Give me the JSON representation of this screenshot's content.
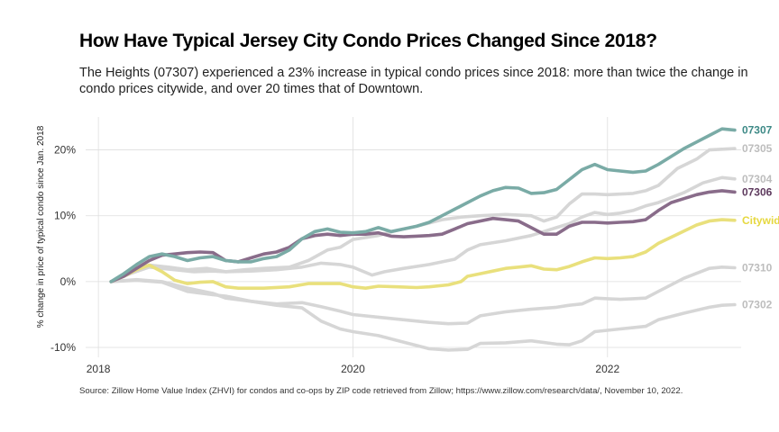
{
  "title": "How Have Typical Jersey City Condo Prices Changed Since 2018?",
  "subtitle": "The Heights (07307) experienced a 23% increase in typical condo prices since 2018: more than twice the change in condo prices citywide, and over 20 times that of Downtown.",
  "source": "Source: Zillow Home Value Index (ZHVI) for condos and co-ops by ZIP code retrieved from Zillow; https://www.zillow.com/research/data/, November 10, 2022.",
  "chart_data": {
    "type": "line",
    "title": "How Have Typical Jersey City Condo Prices Changed Since 2018?",
    "xlabel": "",
    "ylabel": "% change in price of typical condo since Jan. 2018",
    "xlim": [
      2017.9,
      2023.05
    ],
    "ylim": [
      -11.5,
      25
    ],
    "x_ticks": [
      2018,
      2020,
      2022
    ],
    "x_tick_labels": [
      "2018",
      "2020",
      "2022"
    ],
    "y_ticks": [
      -10,
      0,
      10,
      20
    ],
    "y_tick_labels": [
      "-10%",
      "0%",
      "10%",
      "20%"
    ],
    "grid": true,
    "legend": "direct labels at line ends",
    "series": [
      {
        "name": "07310",
        "color": "#d6d6d6",
        "label_color": "#bdbdbd",
        "points": [
          [
            2018.1,
            0
          ],
          [
            2018.3,
            0.3
          ],
          [
            2018.5,
            0
          ],
          [
            2018.7,
            -1.0
          ],
          [
            2018.9,
            -1.8
          ],
          [
            2019.0,
            -2.5
          ],
          [
            2019.2,
            -3.0
          ],
          [
            2019.4,
            -3.4
          ],
          [
            2019.6,
            -3.2
          ],
          [
            2019.75,
            -3.8
          ],
          [
            2019.9,
            -4.5
          ],
          [
            2020.0,
            -5.0
          ],
          [
            2020.2,
            -5.4
          ],
          [
            2020.4,
            -5.8
          ],
          [
            2020.6,
            -6.2
          ],
          [
            2020.75,
            -6.4
          ],
          [
            2020.9,
            -6.3
          ],
          [
            2021.0,
            -5.2
          ],
          [
            2021.2,
            -4.6
          ],
          [
            2021.4,
            -4.2
          ],
          [
            2021.6,
            -3.9
          ],
          [
            2021.7,
            -3.6
          ],
          [
            2021.8,
            -3.4
          ],
          [
            2021.9,
            -2.5
          ],
          [
            2022.0,
            -2.6
          ],
          [
            2022.1,
            -2.7
          ],
          [
            2022.2,
            -2.6
          ],
          [
            2022.3,
            -2.5
          ],
          [
            2022.4,
            -1.5
          ],
          [
            2022.6,
            0.5
          ],
          [
            2022.8,
            2.0
          ],
          [
            2022.9,
            2.2
          ],
          [
            2023.0,
            2.1
          ]
        ]
      },
      {
        "name": "07302",
        "color": "#d6d6d6",
        "label_color": "#bdbdbd",
        "points": [
          [
            2018.1,
            0
          ],
          [
            2018.3,
            0.2
          ],
          [
            2018.5,
            -0.1
          ],
          [
            2018.7,
            -1.5
          ],
          [
            2018.9,
            -2.0
          ],
          [
            2019.0,
            -2.2
          ],
          [
            2019.2,
            -3.0
          ],
          [
            2019.4,
            -3.6
          ],
          [
            2019.6,
            -4.0
          ],
          [
            2019.75,
            -6.0
          ],
          [
            2019.9,
            -7.2
          ],
          [
            2020.0,
            -7.6
          ],
          [
            2020.2,
            -8.2
          ],
          [
            2020.4,
            -9.2
          ],
          [
            2020.6,
            -10.2
          ],
          [
            2020.75,
            -10.4
          ],
          [
            2020.9,
            -10.3
          ],
          [
            2021.0,
            -9.4
          ],
          [
            2021.2,
            -9.3
          ],
          [
            2021.4,
            -9.0
          ],
          [
            2021.6,
            -9.5
          ],
          [
            2021.7,
            -9.6
          ],
          [
            2021.8,
            -9.0
          ],
          [
            2021.9,
            -7.6
          ],
          [
            2022.0,
            -7.4
          ],
          [
            2022.1,
            -7.2
          ],
          [
            2022.2,
            -7.0
          ],
          [
            2022.3,
            -6.8
          ],
          [
            2022.4,
            -5.8
          ],
          [
            2022.6,
            -4.8
          ],
          [
            2022.8,
            -3.9
          ],
          [
            2022.9,
            -3.6
          ],
          [
            2023.0,
            -3.5
          ]
        ]
      },
      {
        "name": "07304",
        "color": "#d6d6d6",
        "label_color": "#bdbdbd",
        "points": [
          [
            2018.1,
            0
          ],
          [
            2018.25,
            1.2
          ],
          [
            2018.4,
            2.2
          ],
          [
            2018.6,
            1.8
          ],
          [
            2018.75,
            1.5
          ],
          [
            2018.9,
            1.6
          ],
          [
            2019.0,
            1.5
          ],
          [
            2019.2,
            1.6
          ],
          [
            2019.4,
            1.8
          ],
          [
            2019.6,
            2.2
          ],
          [
            2019.75,
            2.8
          ],
          [
            2019.9,
            2.6
          ],
          [
            2020.0,
            2.2
          ],
          [
            2020.15,
            1.0
          ],
          [
            2020.25,
            1.5
          ],
          [
            2020.4,
            2.0
          ],
          [
            2020.6,
            2.6
          ],
          [
            2020.8,
            3.4
          ],
          [
            2020.9,
            4.8
          ],
          [
            2021.0,
            5.6
          ],
          [
            2021.2,
            6.2
          ],
          [
            2021.4,
            7.0
          ],
          [
            2021.6,
            8.2
          ],
          [
            2021.7,
            8.8
          ],
          [
            2021.8,
            9.8
          ],
          [
            2021.9,
            10.5
          ],
          [
            2022.0,
            10.2
          ],
          [
            2022.1,
            10.4
          ],
          [
            2022.2,
            10.8
          ],
          [
            2022.3,
            11.5
          ],
          [
            2022.4,
            12.0
          ],
          [
            2022.6,
            13.5
          ],
          [
            2022.75,
            15.0
          ],
          [
            2022.9,
            15.8
          ],
          [
            2023.0,
            15.6
          ]
        ]
      },
      {
        "name": "07305",
        "color": "#d6d6d6",
        "label_color": "#bdbdbd",
        "points": [
          [
            2018.1,
            0
          ],
          [
            2018.25,
            1.5
          ],
          [
            2018.4,
            2.5
          ],
          [
            2018.55,
            2.2
          ],
          [
            2018.7,
            1.8
          ],
          [
            2018.85,
            2.0
          ],
          [
            2019.0,
            1.5
          ],
          [
            2019.15,
            1.8
          ],
          [
            2019.3,
            2.0
          ],
          [
            2019.5,
            2.2
          ],
          [
            2019.65,
            3.2
          ],
          [
            2019.8,
            4.8
          ],
          [
            2019.9,
            5.2
          ],
          [
            2020.0,
            6.4
          ],
          [
            2020.2,
            7.0
          ],
          [
            2020.35,
            7.8
          ],
          [
            2020.5,
            8.4
          ],
          [
            2020.7,
            9.4
          ],
          [
            2020.85,
            9.8
          ],
          [
            2021.0,
            10.0
          ],
          [
            2021.2,
            10.2
          ],
          [
            2021.4,
            10.0
          ],
          [
            2021.5,
            9.2
          ],
          [
            2021.6,
            9.8
          ],
          [
            2021.7,
            11.8
          ],
          [
            2021.8,
            13.3
          ],
          [
            2021.9,
            13.3
          ],
          [
            2022.0,
            13.2
          ],
          [
            2022.2,
            13.4
          ],
          [
            2022.3,
            13.8
          ],
          [
            2022.4,
            14.6
          ],
          [
            2022.55,
            17.2
          ],
          [
            2022.7,
            18.6
          ],
          [
            2022.8,
            20.0
          ],
          [
            2022.9,
            20.1
          ],
          [
            2023.0,
            20.2
          ]
        ]
      },
      {
        "name": "Citywide",
        "color": "#e9e07c",
        "label_color": "#e6d840",
        "points": [
          [
            2018.1,
            0
          ],
          [
            2018.2,
            0.8
          ],
          [
            2018.3,
            1.8
          ],
          [
            2018.4,
            2.5
          ],
          [
            2018.5,
            1.5
          ],
          [
            2018.6,
            0.2
          ],
          [
            2018.7,
            -0.3
          ],
          [
            2018.8,
            -0.1
          ],
          [
            2018.9,
            0.0
          ],
          [
            2019.0,
            -0.8
          ],
          [
            2019.1,
            -1.0
          ],
          [
            2019.2,
            -1.0
          ],
          [
            2019.3,
            -1.0
          ],
          [
            2019.5,
            -0.8
          ],
          [
            2019.65,
            -0.3
          ],
          [
            2019.8,
            -0.3
          ],
          [
            2019.9,
            -0.3
          ],
          [
            2020.0,
            -0.8
          ],
          [
            2020.1,
            -1.0
          ],
          [
            2020.2,
            -0.7
          ],
          [
            2020.35,
            -0.8
          ],
          [
            2020.5,
            -0.9
          ],
          [
            2020.6,
            -0.8
          ],
          [
            2020.75,
            -0.5
          ],
          [
            2020.85,
            0.0
          ],
          [
            2020.9,
            0.8
          ],
          [
            2021.0,
            1.2
          ],
          [
            2021.1,
            1.6
          ],
          [
            2021.2,
            2.0
          ],
          [
            2021.3,
            2.2
          ],
          [
            2021.4,
            2.4
          ],
          [
            2021.5,
            1.9
          ],
          [
            2021.6,
            1.8
          ],
          [
            2021.7,
            2.3
          ],
          [
            2021.8,
            3.0
          ],
          [
            2021.9,
            3.6
          ],
          [
            2022.0,
            3.5
          ],
          [
            2022.1,
            3.6
          ],
          [
            2022.2,
            3.8
          ],
          [
            2022.3,
            4.5
          ],
          [
            2022.4,
            5.8
          ],
          [
            2022.55,
            7.2
          ],
          [
            2022.7,
            8.6
          ],
          [
            2022.8,
            9.2
          ],
          [
            2022.9,
            9.4
          ],
          [
            2023.0,
            9.3
          ]
        ]
      },
      {
        "name": "07306",
        "color": "#896c8a",
        "label_color": "#5e3a5e",
        "points": [
          [
            2018.1,
            0
          ],
          [
            2018.2,
            0.8
          ],
          [
            2018.3,
            2.0
          ],
          [
            2018.4,
            3.2
          ],
          [
            2018.5,
            4.0
          ],
          [
            2018.6,
            4.2
          ],
          [
            2018.7,
            4.4
          ],
          [
            2018.8,
            4.5
          ],
          [
            2018.9,
            4.4
          ],
          [
            2019.0,
            3.2
          ],
          [
            2019.1,
            3.0
          ],
          [
            2019.2,
            3.6
          ],
          [
            2019.3,
            4.2
          ],
          [
            2019.4,
            4.5
          ],
          [
            2019.5,
            5.2
          ],
          [
            2019.6,
            6.5
          ],
          [
            2019.7,
            7.0
          ],
          [
            2019.8,
            7.2
          ],
          [
            2019.9,
            7.0
          ],
          [
            2020.0,
            7.2
          ],
          [
            2020.1,
            7.2
          ],
          [
            2020.2,
            7.4
          ],
          [
            2020.3,
            6.9
          ],
          [
            2020.4,
            6.8
          ],
          [
            2020.5,
            6.9
          ],
          [
            2020.6,
            7.0
          ],
          [
            2020.7,
            7.2
          ],
          [
            2020.8,
            8.0
          ],
          [
            2020.9,
            8.8
          ],
          [
            2021.0,
            9.2
          ],
          [
            2021.1,
            9.6
          ],
          [
            2021.2,
            9.4
          ],
          [
            2021.3,
            9.2
          ],
          [
            2021.4,
            8.2
          ],
          [
            2021.5,
            7.2
          ],
          [
            2021.6,
            7.2
          ],
          [
            2021.7,
            8.4
          ],
          [
            2021.8,
            9.0
          ],
          [
            2021.9,
            9.0
          ],
          [
            2022.0,
            8.9
          ],
          [
            2022.1,
            9.0
          ],
          [
            2022.2,
            9.1
          ],
          [
            2022.3,
            9.4
          ],
          [
            2022.4,
            10.8
          ],
          [
            2022.5,
            12.0
          ],
          [
            2022.6,
            12.6
          ],
          [
            2022.7,
            13.2
          ],
          [
            2022.8,
            13.6
          ],
          [
            2022.9,
            13.8
          ],
          [
            2023.0,
            13.6
          ]
        ]
      },
      {
        "name": "07307",
        "color": "#7aaba6",
        "label_color": "#3e8a87",
        "points": [
          [
            2018.1,
            0
          ],
          [
            2018.2,
            1.2
          ],
          [
            2018.3,
            2.6
          ],
          [
            2018.4,
            3.8
          ],
          [
            2018.5,
            4.2
          ],
          [
            2018.6,
            3.8
          ],
          [
            2018.7,
            3.2
          ],
          [
            2018.8,
            3.6
          ],
          [
            2018.9,
            3.8
          ],
          [
            2019.0,
            3.2
          ],
          [
            2019.1,
            3.0
          ],
          [
            2019.2,
            3.0
          ],
          [
            2019.3,
            3.5
          ],
          [
            2019.4,
            3.8
          ],
          [
            2019.5,
            4.8
          ],
          [
            2019.6,
            6.5
          ],
          [
            2019.7,
            7.6
          ],
          [
            2019.8,
            8.0
          ],
          [
            2019.9,
            7.5
          ],
          [
            2020.0,
            7.4
          ],
          [
            2020.1,
            7.6
          ],
          [
            2020.2,
            8.2
          ],
          [
            2020.3,
            7.6
          ],
          [
            2020.4,
            8.0
          ],
          [
            2020.5,
            8.4
          ],
          [
            2020.6,
            9.0
          ],
          [
            2020.7,
            10.0
          ],
          [
            2020.8,
            11.0
          ],
          [
            2020.9,
            12.0
          ],
          [
            2021.0,
            13.0
          ],
          [
            2021.1,
            13.8
          ],
          [
            2021.2,
            14.3
          ],
          [
            2021.3,
            14.2
          ],
          [
            2021.4,
            13.4
          ],
          [
            2021.5,
            13.5
          ],
          [
            2021.6,
            14.0
          ],
          [
            2021.7,
            15.5
          ],
          [
            2021.8,
            17.0
          ],
          [
            2021.9,
            17.8
          ],
          [
            2022.0,
            17.0
          ],
          [
            2022.1,
            16.8
          ],
          [
            2022.2,
            16.6
          ],
          [
            2022.3,
            16.8
          ],
          [
            2022.4,
            17.8
          ],
          [
            2022.5,
            19.0
          ],
          [
            2022.6,
            20.2
          ],
          [
            2022.7,
            21.2
          ],
          [
            2022.8,
            22.2
          ],
          [
            2022.9,
            23.2
          ],
          [
            2023.0,
            23.0
          ]
        ]
      }
    ]
  }
}
